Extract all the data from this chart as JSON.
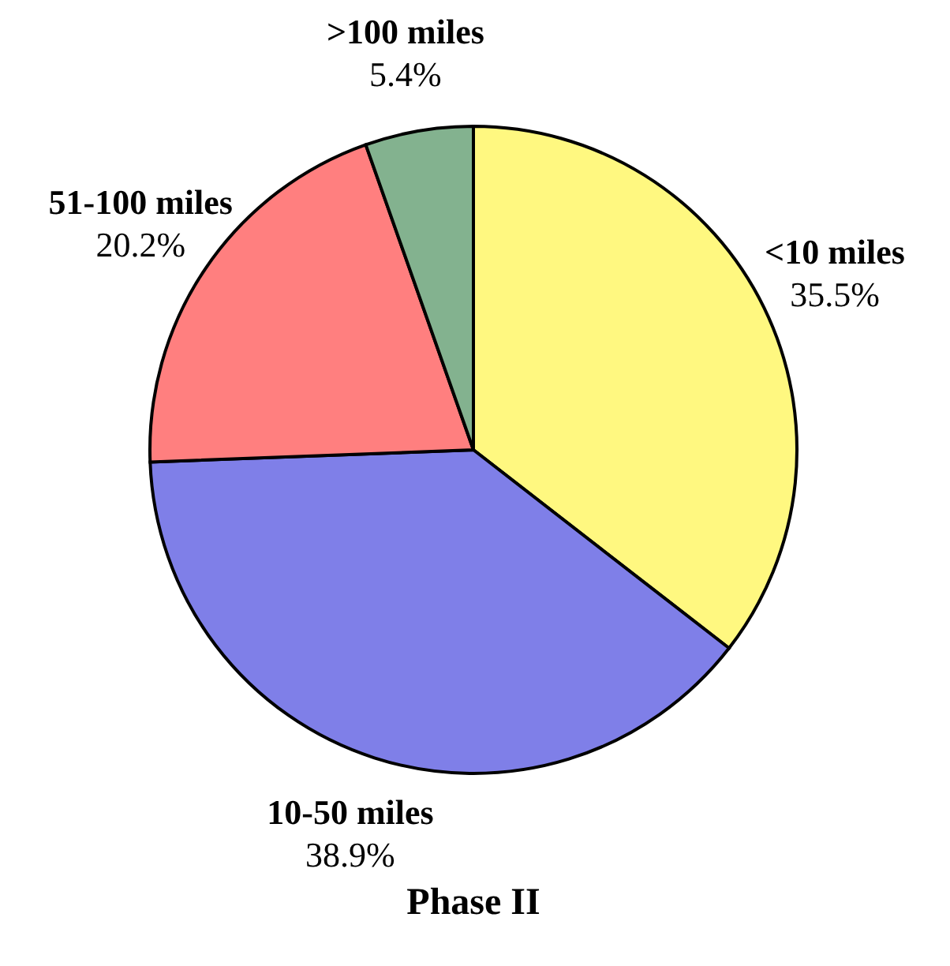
{
  "chart_data": {
    "type": "pie",
    "title": "Phase II",
    "categories": [
      "<10 miles",
      "10-50 miles",
      "51-100 miles",
      ">100 miles"
    ],
    "values": [
      35.5,
      38.9,
      20.2,
      5.4
    ],
    "colors": [
      "#fff880",
      "#7f7fe8",
      "#ff7f7f",
      "#83b28f"
    ],
    "value_labels": [
      "35.5%",
      "38.9%",
      "20.2%",
      "5.4%"
    ],
    "legend": false
  }
}
